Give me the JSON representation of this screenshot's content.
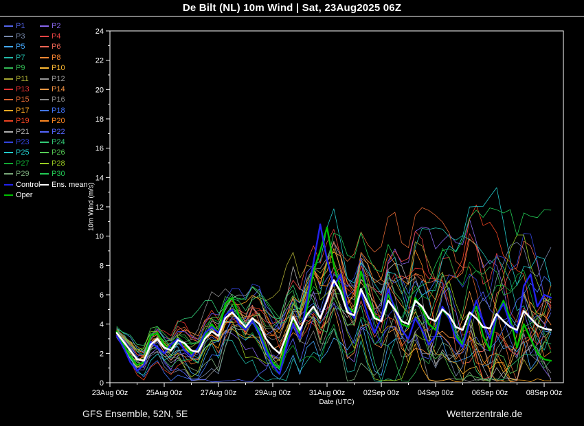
{
  "header": {
    "title": "De Bilt  (NL)  10m Wind | Sat, 23Aug2025 06Z"
  },
  "footer": {
    "left": "GFS Ensemble, 52N, 5E",
    "right": "Wetterzentrale.de"
  },
  "legend": {
    "members": [
      {
        "label": "P1",
        "color": "#5566ee"
      },
      {
        "label": "P2",
        "color": "#8866ee"
      },
      {
        "label": "P3",
        "color": "#7788aa"
      },
      {
        "label": "P4",
        "color": "#ee4444"
      },
      {
        "label": "P5",
        "color": "#44aaff"
      },
      {
        "label": "P6",
        "color": "#ee6655"
      },
      {
        "label": "P7",
        "color": "#22bbaa"
      },
      {
        "label": "P8",
        "color": "#ff8833"
      },
      {
        "label": "P9",
        "color": "#33bb55"
      },
      {
        "label": "P10",
        "color": "#ffbb33"
      },
      {
        "label": "P11",
        "color": "#aaaa33"
      },
      {
        "label": "P12",
        "color": "#999999"
      },
      {
        "label": "P13",
        "color": "#ee3333"
      },
      {
        "label": "P14",
        "color": "#ff9944"
      },
      {
        "label": "P15",
        "color": "#dd6633"
      },
      {
        "label": "P16",
        "color": "#8a8a8a"
      },
      {
        "label": "P17",
        "color": "#ffaa22"
      },
      {
        "label": "P18",
        "color": "#4477ff"
      },
      {
        "label": "P19",
        "color": "#ee4422"
      },
      {
        "label": "P20",
        "color": "#ff8822"
      },
      {
        "label": "P21",
        "color": "#b0b0b0"
      },
      {
        "label": "P22",
        "color": "#5566ff"
      },
      {
        "label": "P23",
        "color": "#3344dd"
      },
      {
        "label": "P24",
        "color": "#33cc77"
      },
      {
        "label": "P25",
        "color": "#22cccc"
      },
      {
        "label": "P26",
        "color": "#55cc55"
      },
      {
        "label": "P27",
        "color": "#11aa33"
      },
      {
        "label": "P28",
        "color": "#99cc22"
      },
      {
        "label": "P29",
        "color": "#7aa87a"
      },
      {
        "label": "P30",
        "color": "#22cc55"
      }
    ],
    "control": {
      "label": "Control",
      "color": "#2222ee"
    },
    "mean": {
      "label": "Ens. mean",
      "color": "#ffffff"
    },
    "oper": {
      "label": "Oper",
      "color": "#00c000"
    }
  },
  "chart_data": {
    "type": "line",
    "title": "De Bilt  (NL)  10m Wind | Sat, 23Aug2025 06Z",
    "xlabel": "Date (UTC)",
    "ylabel": "10m Wind (m/s)",
    "x_unit": "days since 23Aug 00z",
    "x_start": 0.25,
    "x_step": 0.25,
    "xlim": [
      0,
      16.7
    ],
    "ylim": [
      0,
      24
    ],
    "grid": false,
    "legend_position": "top-left",
    "y_ticks": [
      0,
      2,
      4,
      6,
      8,
      10,
      12,
      14,
      16,
      18,
      20,
      22,
      24
    ],
    "x_ticks": {
      "days": [
        0,
        2,
        4,
        6,
        8,
        10,
        12,
        14,
        16
      ],
      "labels": [
        "23Aug 00z",
        "25Aug 00z",
        "27Aug 00z",
        "29Aug 00z",
        "31Aug 00z",
        "02Sep 00z",
        "04Sep 00z",
        "06Sep 00z",
        "08Sep 00z"
      ]
    },
    "series": [
      {
        "name": "Ens. mean",
        "color": "#ffffff",
        "width": 2.6,
        "values": [
          3.4,
          2.8,
          2.2,
          1.6,
          1.5,
          2.6,
          3.0,
          2.4,
          2.2,
          2.9,
          2.7,
          2.2,
          2.1,
          3.0,
          3.5,
          3.2,
          4.4,
          4.8,
          4.3,
          3.8,
          4.4,
          4.0,
          3.0,
          2.4,
          2.0,
          3.2,
          4.5,
          3.6,
          4.6,
          5.2,
          4.4,
          5.6,
          7.0,
          6.2,
          4.8,
          4.6,
          6.4,
          5.4,
          4.4,
          4.2,
          5.6,
          5.0,
          4.2,
          4.0,
          5.6,
          5.2,
          4.4,
          4.2,
          5.0,
          4.6,
          3.8,
          3.6,
          4.8,
          4.4,
          3.8,
          3.7,
          4.7,
          4.2,
          3.8,
          3.6,
          4.9,
          4.4,
          3.9,
          3.7,
          3.6
        ]
      },
      {
        "name": "Control",
        "color": "#2222ee",
        "width": 2.4,
        "values": [
          3.2,
          2.4,
          1.4,
          0.8,
          1.2,
          2.8,
          2.4,
          2.0,
          2.6,
          3.0,
          2.2,
          1.8,
          2.4,
          3.4,
          3.8,
          3.4,
          4.6,
          5.0,
          4.0,
          3.6,
          4.2,
          3.4,
          2.2,
          1.2,
          0.6,
          2.4,
          4.0,
          3.0,
          5.6,
          8.2,
          10.8,
          8.4,
          6.6,
          7.4,
          5.2,
          4.4,
          6.2,
          4.6,
          3.4,
          4.4,
          6.4,
          5.0,
          3.6,
          3.0,
          4.4,
          3.6,
          2.6,
          3.2,
          5.2,
          4.4,
          3.0,
          2.4,
          4.2,
          5.6,
          4.2,
          3.0,
          4.6,
          5.4,
          4.0,
          3.4,
          6.6,
          7.4,
          5.2,
          6.0,
          5.8
        ]
      },
      {
        "name": "Oper",
        "color": "#00c000",
        "width": 2.4,
        "values": [
          3.5,
          2.6,
          1.8,
          1.2,
          1.4,
          3.2,
          3.4,
          2.6,
          2.2,
          3.0,
          2.6,
          2.0,
          2.3,
          3.2,
          4.0,
          3.4,
          5.4,
          5.8,
          4.6,
          3.6,
          4.2,
          3.6,
          2.4,
          1.4,
          1.0,
          3.0,
          4.4,
          3.4,
          5.0,
          7.6,
          9.0,
          10.6,
          8.0,
          6.4,
          5.2,
          4.8,
          7.6,
          6.0,
          4.6,
          4.2,
          6.0,
          5.2,
          4.0,
          3.8,
          5.8,
          5.0,
          4.0,
          3.6,
          5.0,
          4.4,
          3.2,
          2.6,
          4.4,
          5.2,
          3.2,
          2.2,
          4.6,
          5.6,
          4.4,
          2.4,
          4.0,
          3.0,
          2.0,
          1.6,
          1.5
        ]
      }
    ],
    "ensemble_members": {
      "count": 30,
      "members_note": "30 thin perturbation lines (P1-P30) drawn as spread around the ensemble mean; spread grows from ~0.5 m/s at start to ~3 m/s at day 16",
      "spread_start": 0.5,
      "spread_max": 3.0
    }
  }
}
